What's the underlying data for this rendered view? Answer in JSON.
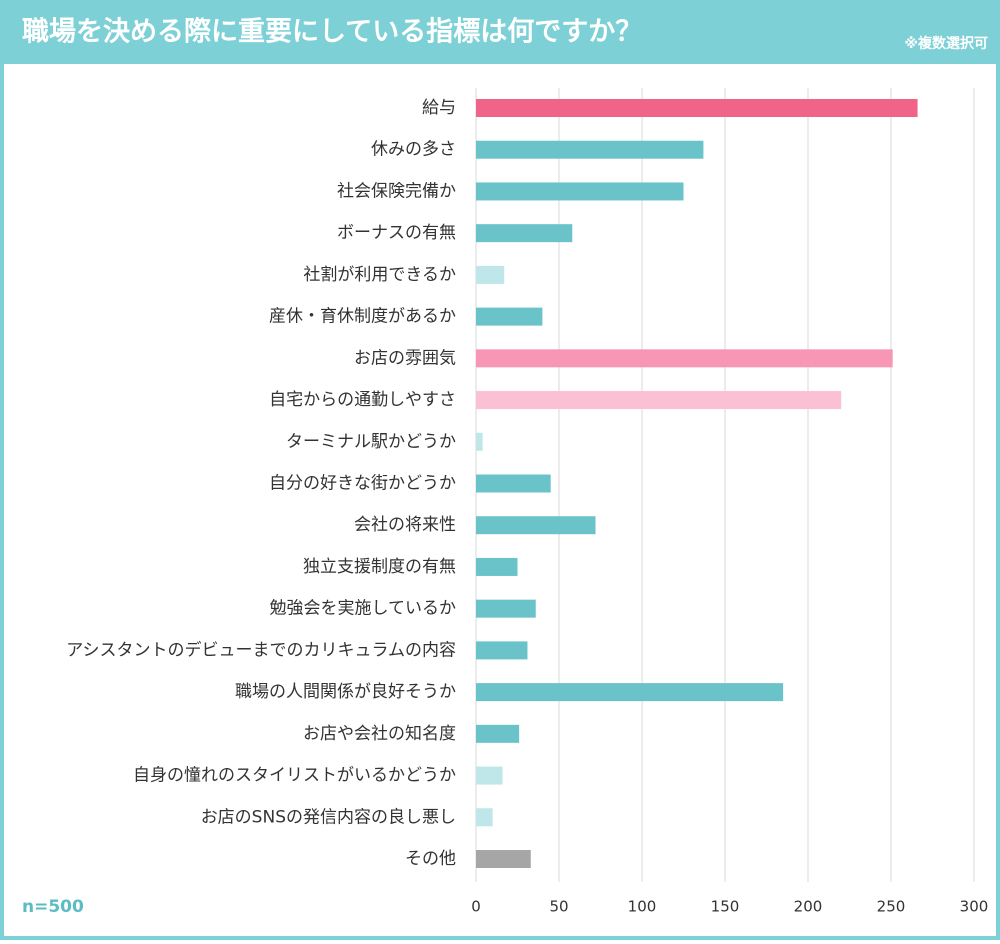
{
  "chart_data": {
    "type": "barh",
    "title": "職場を決める際に重要にしている指標は何ですか？",
    "subtitle": "※複数選択可",
    "note": "n=500",
    "categories": [
      "給与",
      "休みの多さ",
      "社会保険完備か",
      "ボーナスの有無",
      "社割が利用できるか",
      "産休・育休制度があるか",
      "お店の雰囲気",
      "自宅からの通勤しやすさ",
      "ターミナル駅かどうか",
      "自分の好きな街かどうか",
      "会社の将来性",
      "独立支援制度の有無",
      "勉強会を実施しているか",
      "アシスタントのデビューまでのカリキュラムの内容",
      "職場の人間関係が良好そうか",
      "お店や会社の知名度",
      "自身の憧れのスタイリストがいるかどうか",
      "お店のSNSの発信内容の良し悪し",
      "その他"
    ],
    "values": [
      266,
      137,
      125,
      58,
      17,
      40,
      251,
      220,
      4,
      45,
      72,
      25,
      36,
      31,
      185,
      26,
      16,
      10,
      33
    ],
    "colors": [
      "#f0648a",
      "#6ac3c8",
      "#6ac3c8",
      "#6ac3c8",
      "#bfe6e8",
      "#6ac3c8",
      "#f797b5",
      "#fbc0d4",
      "#bfe6e8",
      "#6ac3c8",
      "#6ac3c8",
      "#6ac3c8",
      "#6ac3c8",
      "#6ac3c8",
      "#6ac3c8",
      "#6ac3c8",
      "#bfe6e8",
      "#bfe6e8",
      "#a6a6a6"
    ],
    "xlim": [
      0,
      300
    ],
    "xticks": [
      0,
      50,
      100,
      150,
      200,
      250,
      300
    ],
    "grid": true
  }
}
